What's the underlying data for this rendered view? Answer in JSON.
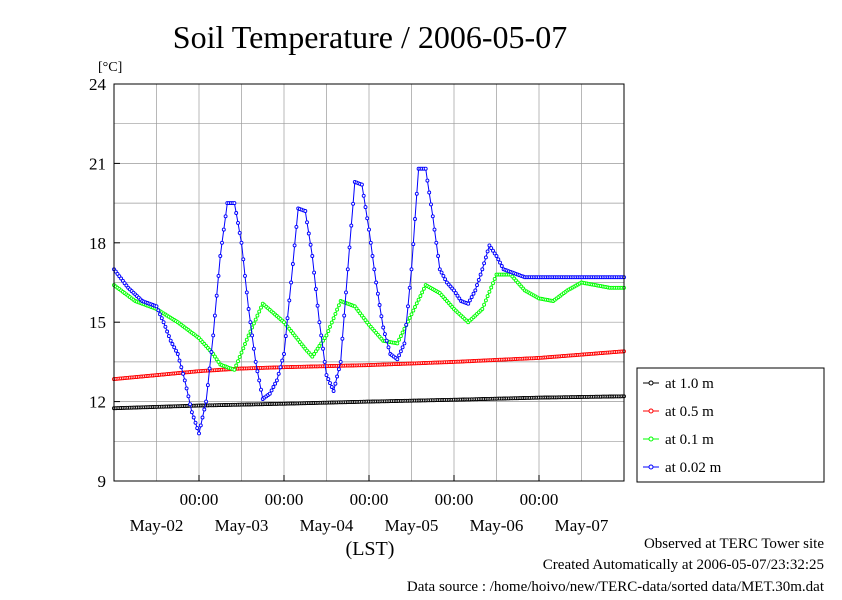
{
  "chart_data": {
    "type": "line",
    "title": "Soil Temperature / 2006-05-07",
    "ylabel": "[°C]",
    "xlabel": "(LST)",
    "ylim": [
      9,
      24
    ],
    "xlim_hours": [
      0,
      144
    ],
    "y_ticks": [
      "9",
      "12",
      "15",
      "18",
      "21",
      "24"
    ],
    "x_tick_times": [
      "00:00",
      "00:00",
      "00:00",
      "00:00",
      "00:00"
    ],
    "x_day_labels": [
      "May-02",
      "May-03",
      "May-04",
      "May-05",
      "May-06",
      "May-07"
    ],
    "x_time_tick_hours": [
      24,
      48,
      72,
      96,
      120
    ],
    "x_day_label_hours": [
      12,
      36,
      60,
      84,
      108,
      132
    ],
    "grid": true,
    "legend_position": "bottom-right outside plot",
    "series": [
      {
        "name": "at 1.0 m",
        "color": "#000000",
        "x_hours": [
          0,
          24,
          48,
          72,
          96,
          120,
          144
        ],
        "values": [
          11.75,
          11.85,
          11.92,
          12.0,
          12.07,
          12.15,
          12.2
        ]
      },
      {
        "name": "at 0.5 m",
        "color": "#ff0000",
        "x_hours": [
          0,
          12,
          24,
          36,
          48,
          72,
          96,
          120,
          144
        ],
        "values": [
          12.85,
          13.0,
          13.15,
          13.25,
          13.3,
          13.38,
          13.5,
          13.65,
          13.9
        ]
      },
      {
        "name": "at 0.1 m",
        "color": "#00ff00",
        "x_hours": [
          0,
          6,
          12,
          18,
          24,
          28,
          30,
          34,
          38,
          42,
          48,
          54,
          56,
          60,
          64,
          68,
          72,
          76,
          80,
          84,
          88,
          92,
          96,
          100,
          104,
          108,
          112,
          116,
          120,
          124,
          128,
          132,
          136,
          140,
          144
        ],
        "values": [
          16.4,
          15.8,
          15.5,
          15.0,
          14.4,
          13.8,
          13.4,
          13.2,
          14.5,
          15.7,
          15.0,
          14.0,
          13.7,
          14.5,
          15.8,
          15.6,
          14.9,
          14.3,
          14.2,
          15.3,
          16.4,
          16.1,
          15.5,
          15.0,
          15.5,
          16.8,
          16.8,
          16.2,
          15.9,
          15.8,
          16.2,
          16.5,
          16.4,
          16.3,
          16.3
        ]
      },
      {
        "name": "at 0.02 m",
        "color": "#0000ff",
        "x_hours": [
          0,
          4,
          8,
          10,
          12,
          14,
          16,
          18,
          20,
          22,
          24,
          26,
          28,
          30,
          32,
          34,
          36,
          38,
          40,
          42,
          44,
          46,
          48,
          50,
          52,
          54,
          56,
          58,
          60,
          62,
          64,
          66,
          68,
          70,
          72,
          74,
          76,
          78,
          80,
          82,
          84,
          86,
          88,
          90,
          92,
          94,
          96,
          98,
          100,
          102,
          104,
          106,
          108,
          110,
          112,
          114,
          116,
          118,
          120,
          122,
          124,
          126,
          128,
          130,
          132,
          134,
          136,
          138,
          140,
          142,
          144
        ],
        "values": [
          17.0,
          16.3,
          15.8,
          15.7,
          15.6,
          15.0,
          14.3,
          13.8,
          12.8,
          11.6,
          10.8,
          12.0,
          14.5,
          17.5,
          19.5,
          19.5,
          18.0,
          15.5,
          13.5,
          12.1,
          12.3,
          12.8,
          13.8,
          16.5,
          19.3,
          19.2,
          17.5,
          15.0,
          13.0,
          12.4,
          13.5,
          17.0,
          20.3,
          20.2,
          18.5,
          16.5,
          14.8,
          13.8,
          13.6,
          14.2,
          17.0,
          20.8,
          20.8,
          19.0,
          17.0,
          16.5,
          16.2,
          15.8,
          15.7,
          16.2,
          17.0,
          17.9,
          17.5,
          17.0,
          16.9,
          16.8,
          16.7,
          16.7,
          16.7,
          16.7,
          16.7,
          16.7,
          16.7,
          16.7,
          16.7,
          16.7,
          16.7,
          16.7,
          16.7,
          16.7,
          16.7
        ]
      }
    ]
  },
  "footer": {
    "line1": "Observed at TERC Tower site",
    "line2": "Created Automatically at 2006-05-07/23:32:25",
    "line3": "Data source : /home/hoivo/new/TERC-data/sorted  data/MET.30m.dat"
  }
}
